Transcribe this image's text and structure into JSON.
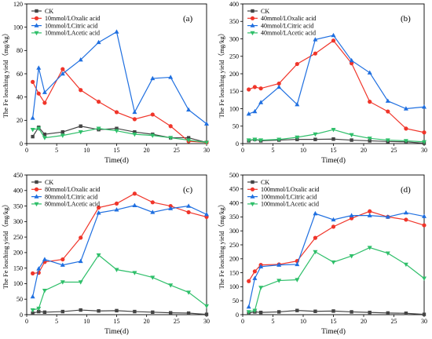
{
  "colors": {
    "CK": "#444444",
    "oxalic": "#f0352a",
    "citric": "#1f6fe0",
    "acetic": "#2fbf6a"
  },
  "chart_data": [
    {
      "type": "line",
      "panel_label": "(a)",
      "xlabel": "Time(d)",
      "ylabel": "The Fe leaching yield（mg/kg）",
      "xlim": [
        0,
        30
      ],
      "ylim": [
        0,
        120
      ],
      "xticks": [
        "0",
        "5",
        "10",
        "15",
        "20",
        "25",
        "30"
      ],
      "yticks": [
        "0",
        "20",
        "40",
        "60",
        "80",
        "100",
        "120"
      ],
      "legend_position": "top-left",
      "series": [
        {
          "name": "CK",
          "key": "CK",
          "marker": "square",
          "x": [
            1,
            2,
            3,
            6,
            9,
            12,
            15,
            18,
            21,
            24,
            27,
            30
          ],
          "y": [
            6,
            14,
            8,
            10,
            15,
            12,
            13,
            10,
            8,
            5,
            5,
            1
          ]
        },
        {
          "name": "10mmol/LOxalic acid",
          "key": "oxalic",
          "marker": "circle",
          "x": [
            1,
            2,
            3,
            6,
            9,
            12,
            15,
            18,
            21,
            24,
            27,
            30
          ],
          "y": [
            53,
            43,
            35,
            64,
            46,
            36,
            27,
            21,
            25,
            15,
            2,
            1
          ]
        },
        {
          "name": "10mmol/LCitric acid",
          "key": "citric",
          "marker": "triangle",
          "x": [
            1,
            2,
            3,
            6,
            9,
            12,
            15,
            18,
            21,
            24,
            27,
            30
          ],
          "y": [
            22,
            65,
            44,
            60,
            72,
            87,
            96,
            27,
            56,
            57,
            29,
            17
          ]
        },
        {
          "name": "10mmol/LAcetic acid",
          "key": "acetic",
          "marker": "tri-down",
          "x": [
            1,
            2,
            3,
            6,
            9,
            12,
            15,
            18,
            21,
            24,
            27,
            30
          ],
          "y": [
            12,
            13,
            5,
            7,
            10,
            13,
            11,
            8,
            7,
            5,
            3,
            1
          ]
        }
      ]
    },
    {
      "type": "line",
      "panel_label": "(b)",
      "xlabel": "Time(d)",
      "ylabel": "The Fe leaching yield（mg/kg）",
      "xlim": [
        0,
        30
      ],
      "ylim": [
        0,
        400
      ],
      "xticks": [
        "0",
        "5",
        "10",
        "15",
        "20",
        "25",
        "30"
      ],
      "yticks": [
        "0",
        "50",
        "100",
        "150",
        "200",
        "250",
        "300",
        "350",
        "400"
      ],
      "legend_position": "top-left",
      "series": [
        {
          "name": "CK",
          "key": "CK",
          "marker": "square",
          "x": [
            1,
            2,
            3,
            6,
            9,
            12,
            15,
            18,
            21,
            24,
            27,
            30
          ],
          "y": [
            8,
            12,
            8,
            10,
            12,
            12,
            13,
            10,
            8,
            6,
            5,
            1
          ]
        },
        {
          "name": "40mmol/LOxalic acid",
          "key": "oxalic",
          "marker": "circle",
          "x": [
            1,
            2,
            3,
            6,
            9,
            12,
            15,
            18,
            21,
            24,
            27,
            30
          ],
          "y": [
            155,
            162,
            158,
            172,
            228,
            258,
            295,
            230,
            120,
            92,
            43,
            32
          ]
        },
        {
          "name": "40mmol/LCitric acid",
          "key": "citric",
          "marker": "triangle",
          "x": [
            1,
            2,
            3,
            6,
            9,
            12,
            15,
            18,
            21,
            24,
            27,
            30
          ],
          "y": [
            85,
            92,
            118,
            162,
            112,
            298,
            310,
            238,
            203,
            122,
            100,
            105
          ]
        },
        {
          "name": "40mmol/LAcetic acid",
          "key": "acetic",
          "marker": "tri-down",
          "x": [
            1,
            2,
            3,
            6,
            9,
            12,
            15,
            18,
            21,
            24,
            27,
            30
          ],
          "y": [
            10,
            12,
            10,
            12,
            18,
            27,
            40,
            25,
            15,
            10,
            8,
            5
          ]
        }
      ]
    },
    {
      "type": "line",
      "panel_label": "(c)",
      "xlabel": "Time(d)",
      "ylabel": "The Fe leaching yield（mg/kg）",
      "xlim": [
        0,
        30
      ],
      "ylim": [
        0,
        450
      ],
      "xticks": [
        "0",
        "5",
        "10",
        "15",
        "20",
        "25",
        "30"
      ],
      "yticks": [
        "0",
        "50",
        "100",
        "150",
        "200",
        "250",
        "300",
        "350",
        "400",
        "450"
      ],
      "legend_position": "top-left",
      "series": [
        {
          "name": "CK",
          "key": "CK",
          "marker": "square",
          "x": [
            1,
            2,
            3,
            6,
            9,
            12,
            15,
            18,
            21,
            24,
            27,
            30
          ],
          "y": [
            5,
            10,
            8,
            10,
            15,
            12,
            13,
            10,
            8,
            6,
            5,
            1
          ]
        },
        {
          "name": "80mmol/LOxalic acid",
          "key": "oxalic",
          "marker": "circle",
          "x": [
            1,
            2,
            3,
            6,
            9,
            12,
            15,
            18,
            21,
            24,
            27,
            30
          ],
          "y": [
            133,
            135,
            170,
            178,
            248,
            345,
            358,
            390,
            362,
            350,
            330,
            315
          ]
        },
        {
          "name": "80mmol/LCitric acid",
          "key": "citric",
          "marker": "triangle",
          "x": [
            1,
            2,
            3,
            6,
            9,
            12,
            15,
            18,
            21,
            24,
            27,
            30
          ],
          "y": [
            58,
            148,
            178,
            160,
            172,
            328,
            338,
            352,
            330,
            342,
            350,
            323
          ]
        },
        {
          "name": "80mmol/LAcetic acid",
          "key": "acetic",
          "marker": "tri-down",
          "x": [
            1,
            2,
            3,
            6,
            9,
            12,
            15,
            18,
            21,
            24,
            27,
            30
          ],
          "y": [
            15,
            20,
            78,
            105,
            105,
            192,
            145,
            135,
            120,
            95,
            72,
            28
          ]
        }
      ]
    },
    {
      "type": "line",
      "panel_label": "(d)",
      "xlabel": "Time(d)",
      "ylabel": "The Fe leaching yield（mg/kg）",
      "xlim": [
        0,
        30
      ],
      "ylim": [
        0,
        500
      ],
      "xticks": [
        "0",
        "5",
        "10",
        "15",
        "20",
        "25",
        "30"
      ],
      "yticks": [
        "0",
        "50",
        "100",
        "150",
        "200",
        "250",
        "300",
        "350",
        "400",
        "450",
        "500"
      ],
      "legend_position": "top-left",
      "series": [
        {
          "name": "CK",
          "key": "CK",
          "marker": "square",
          "x": [
            1,
            2,
            3,
            6,
            9,
            12,
            15,
            18,
            21,
            24,
            27,
            30
          ],
          "y": [
            5,
            10,
            8,
            10,
            15,
            12,
            13,
            10,
            8,
            6,
            5,
            1
          ]
        },
        {
          "name": "100mmol/LOxalic acid",
          "key": "oxalic",
          "marker": "circle",
          "x": [
            1,
            2,
            3,
            6,
            9,
            12,
            15,
            18,
            21,
            24,
            27,
            30
          ],
          "y": [
            120,
            155,
            178,
            180,
            192,
            275,
            315,
            345,
            370,
            350,
            340,
            320
          ]
        },
        {
          "name": "100mmol/LCitric acid",
          "key": "citric",
          "marker": "triangle",
          "x": [
            1,
            2,
            3,
            6,
            9,
            12,
            15,
            18,
            21,
            24,
            27,
            30
          ],
          "y": [
            28,
            130,
            172,
            178,
            180,
            362,
            340,
            355,
            355,
            350,
            365,
            352
          ]
        },
        {
          "name": "100mmol/LAcetic acid",
          "key": "acetic",
          "marker": "tri-down",
          "x": [
            1,
            2,
            3,
            6,
            9,
            12,
            15,
            18,
            21,
            24,
            27,
            30
          ],
          "y": [
            10,
            15,
            97,
            122,
            125,
            225,
            188,
            210,
            240,
            220,
            180,
            130
          ]
        }
      ]
    }
  ]
}
